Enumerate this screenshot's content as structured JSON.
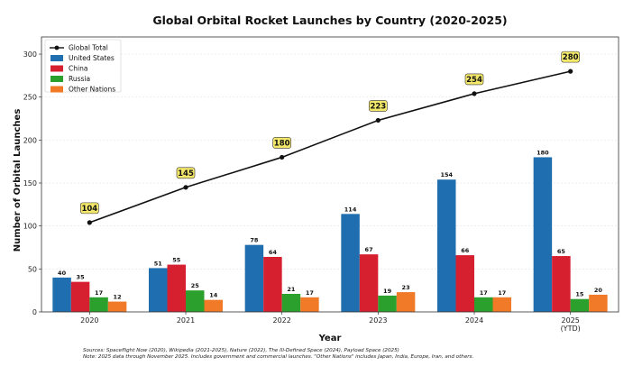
{
  "chart_data": {
    "type": "bar",
    "title": "Global Orbital Rocket Launches by Country (2020-2025)",
    "xlabel": "Year",
    "ylabel": "Number of Orbital Launches",
    "categories": [
      "2020",
      "2021",
      "2022",
      "2023",
      "2024",
      "2025"
    ],
    "category_sublabels": [
      "",
      "",
      "",
      "",
      "",
      "(YTD)"
    ],
    "ylim": [
      0,
      320
    ],
    "yticks": [
      0,
      50,
      100,
      150,
      200,
      250,
      300
    ],
    "grid": true,
    "legend_position": "top-left",
    "series": [
      {
        "name": "United States",
        "color": "#1f6fb0",
        "values": [
          40,
          51,
          78,
          114,
          154,
          180
        ]
      },
      {
        "name": "China",
        "color": "#d62030",
        "values": [
          35,
          55,
          64,
          67,
          66,
          65
        ]
      },
      {
        "name": "Russia",
        "color": "#2ca02c",
        "values": [
          17,
          25,
          21,
          19,
          17,
          15
        ]
      },
      {
        "name": "Other Nations",
        "color": "#f07a28",
        "values": [
          12,
          14,
          17,
          23,
          17,
          20
        ]
      }
    ],
    "line_series": {
      "name": "Global Total",
      "color": "#111111",
      "values": [
        104,
        145,
        180,
        223,
        254,
        280
      ]
    },
    "total_label_color": "#f3e86a",
    "footnotes": [
      "Sources: Spaceflight Now (2020), Wikipedia (2021-2025), Nature (2022), The Ill-Defined Space (2024), Payload Space (2025)",
      "Note: 2025 data through November 2025. Includes government and commercial launches. \"Other Nations\" includes Japan, India, Europe, Iran, and others."
    ]
  }
}
